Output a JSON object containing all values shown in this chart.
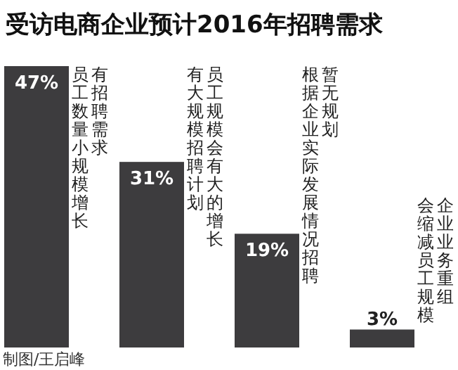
{
  "chart_data": {
    "type": "bar",
    "title": "受访电商企业预计2016年招聘需求",
    "categories": [
      "有招聘需求员工数量小规模增长",
      "员工规模会有大的增长有大规模招聘计划",
      "暂无规划根据企业实际发展情况招聘",
      "企业业务重组会缩减员工规模"
    ],
    "values": [
      47,
      31,
      19,
      3
    ],
    "value_labels": [
      "47%",
      "31%",
      "19%",
      "3%"
    ],
    "color": "#3d3c3e",
    "annotations": [
      "制图/王启峰"
    ]
  }
}
